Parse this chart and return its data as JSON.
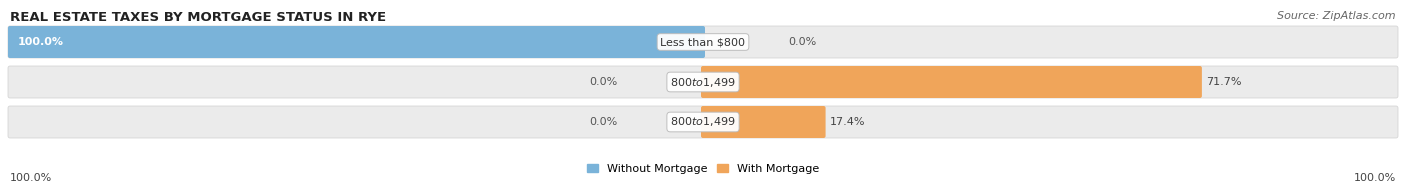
{
  "title": "REAL ESTATE TAXES BY MORTGAGE STATUS IN RYE",
  "source": "Source: ZipAtlas.com",
  "rows": [
    {
      "label": "Less than $800",
      "without_mortgage": 100.0,
      "with_mortgage": 0.0
    },
    {
      "label": "$800 to $1,499",
      "without_mortgage": 0.0,
      "with_mortgage": 71.7
    },
    {
      "label": "$800 to $1,499",
      "without_mortgage": 0.0,
      "with_mortgage": 17.4
    }
  ],
  "color_without": "#7ab3d9",
  "color_with": "#f0a55a",
  "color_with_light": "#f5cfa0",
  "bar_bg": "#ebebeb",
  "max_value": 100.0,
  "legend_without": "Without Mortgage",
  "legend_with": "With Mortgage",
  "left_label": "100.0%",
  "right_label": "100.0%",
  "title_fontsize": 9.5,
  "source_fontsize": 8,
  "label_fontsize": 8,
  "value_fontsize": 8
}
